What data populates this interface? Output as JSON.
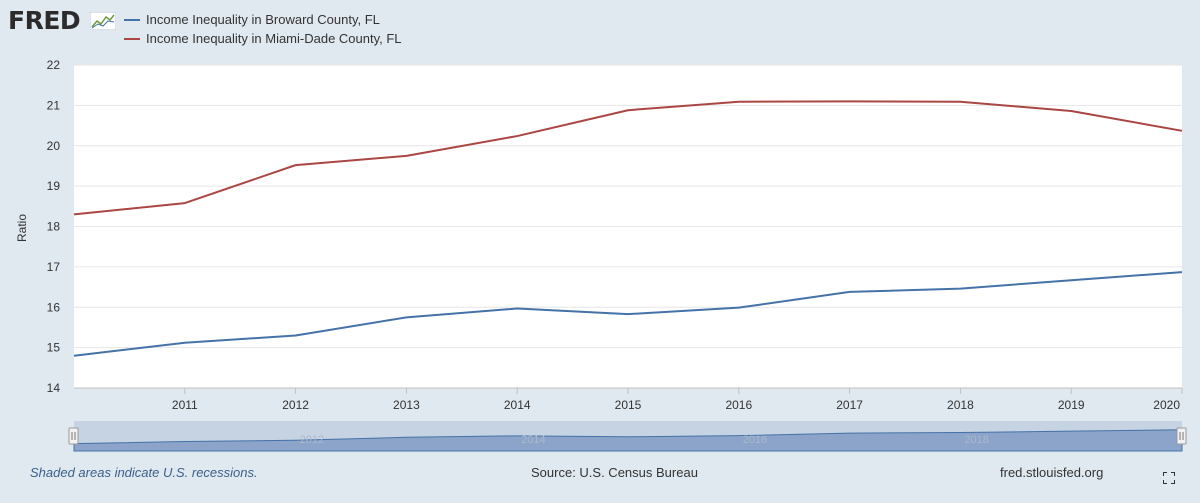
{
  "brand": {
    "logo_text": "FRED",
    "logo_icon": "line-chart-icon"
  },
  "legend": [
    {
      "label": "Income Inequality in Broward County, FL",
      "color": "#4572a7"
    },
    {
      "label": "Income Inequality in Miami-Dade County, FL",
      "color": "#aa4643"
    }
  ],
  "chart_data": {
    "type": "line",
    "ylabel": "Ratio",
    "ylim": [
      14,
      22
    ],
    "yticks": [
      "14",
      "15",
      "16",
      "17",
      "18",
      "19",
      "20",
      "21",
      "22"
    ],
    "xlim": [
      2010,
      2020
    ],
    "xticks": [
      "2011",
      "2012",
      "2013",
      "2014",
      "2015",
      "2016",
      "2017",
      "2018",
      "2019",
      "2020"
    ],
    "x": [
      2010,
      2011,
      2012,
      2013,
      2014,
      2015,
      2016,
      2017,
      2018,
      2019,
      2020
    ],
    "series": [
      {
        "name": "Income Inequality in Broward County, FL",
        "color": "#4572a7",
        "values": [
          14.8,
          15.12,
          15.3,
          15.75,
          15.97,
          15.83,
          15.99,
          16.38,
          16.46,
          16.67,
          16.87
        ]
      },
      {
        "name": "Income Inequality in Miami-Dade County, FL",
        "color": "#aa4643",
        "values": [
          18.3,
          18.58,
          19.52,
          19.75,
          20.24,
          20.88,
          21.09,
          21.1,
          21.09,
          20.86,
          20.37
        ]
      }
    ],
    "navigator": {
      "tick_labels": [
        "2012",
        "2014",
        "2016",
        "2018"
      ]
    },
    "grid": true
  },
  "footer": {
    "recession_note": "Shaded areas indicate U.S. recessions.",
    "source": "Source: U.S. Census Bureau",
    "site": "fred.stlouisfed.org",
    "fullscreen_icon": "fullscreen-icon"
  }
}
